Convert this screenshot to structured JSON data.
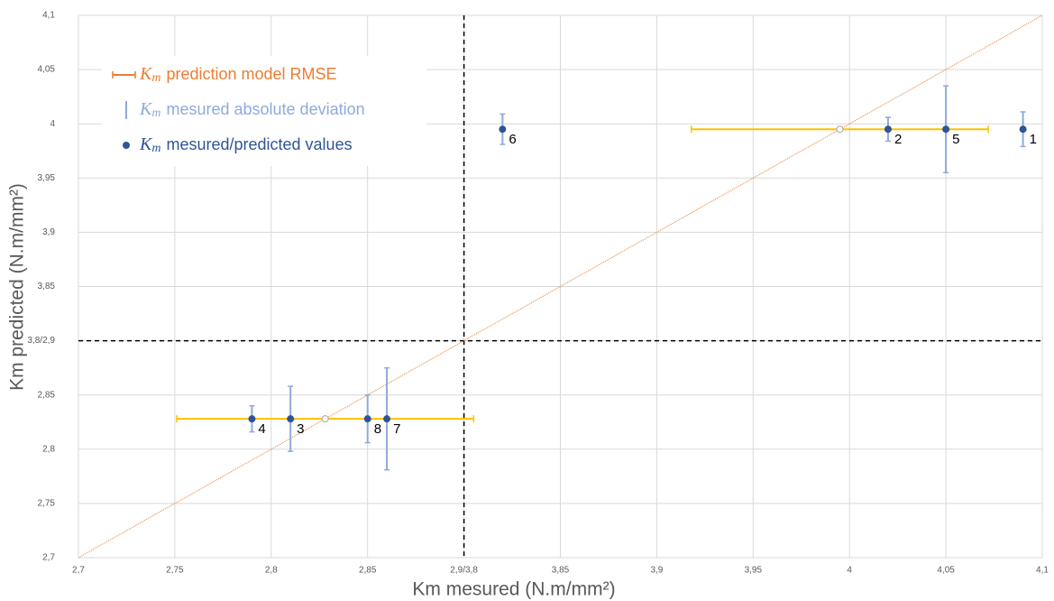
{
  "chart_data": {
    "type": "scatter",
    "xlabel": "Km mesured (N.m/mm²)",
    "ylabel": "Km predicted (N.m/mm²)",
    "xlim": [
      2.7,
      4.1
    ],
    "ylim": [
      2.7,
      4.1
    ],
    "xbreak": [
      2.9,
      3.8
    ],
    "ybreak": [
      2.9,
      3.8
    ],
    "grid": true,
    "identity_line": true,
    "xticks": [
      {
        "value": 2.7,
        "label": "2,7"
      },
      {
        "value": 2.75,
        "label": "2,75"
      },
      {
        "value": 2.8,
        "label": "2,8"
      },
      {
        "value": 2.85,
        "label": "2,85"
      },
      {
        "value": 2.9,
        "label": "2,9/3,8"
      },
      {
        "value": 3.85,
        "label": "3,85"
      },
      {
        "value": 3.9,
        "label": "3,9"
      },
      {
        "value": 3.95,
        "label": "3,95"
      },
      {
        "value": 4,
        "label": "4"
      },
      {
        "value": 4.05,
        "label": "4,05"
      },
      {
        "value": 4.1,
        "label": "4,1"
      }
    ],
    "yticks": [
      {
        "value": 2.7,
        "label": "2,7"
      },
      {
        "value": 2.75,
        "label": "2,75"
      },
      {
        "value": 2.8,
        "label": "2,8"
      },
      {
        "value": 2.85,
        "label": "2,85"
      },
      {
        "value": 2.9,
        "label": "3,8/2,9"
      },
      {
        "value": 3.85,
        "label": "3,85"
      },
      {
        "value": 3.9,
        "label": "3,9"
      },
      {
        "value": 3.95,
        "label": "3,95"
      },
      {
        "value": 4,
        "label": "4"
      },
      {
        "value": 4.05,
        "label": "4,05"
      },
      {
        "value": 4.1,
        "label": "4,1"
      }
    ],
    "legend_symbol": "K",
    "legend_symbol_sub": "m",
    "legend": "upper left",
    "series": [
      {
        "name": "prediction model RMSE",
        "color": "#ed7d31",
        "bar_color": "#ffc000",
        "x": [
          2.828,
          3.995
        ],
        "values": [
          2.828,
          3.995
        ],
        "xerr": [
          0.077,
          0.077
        ]
      },
      {
        "name": "mesured absolute deviation",
        "color": "#8faadc",
        "values": [
          0.016,
          0.011,
          0.03,
          0.012,
          0.04,
          0.014,
          0.047,
          0.022
        ]
      },
      {
        "name": "mesured/predicted values",
        "color": "#2f5597",
        "x": [
          4.09,
          4.02,
          2.81,
          2.79,
          4.05,
          3.82,
          2.86,
          2.85
        ],
        "values": [
          3.995,
          3.995,
          2.828,
          2.828,
          3.995,
          3.995,
          2.828,
          2.828
        ],
        "labels": [
          "1",
          "2",
          "3",
          "4",
          "5",
          "6",
          "7",
          "8"
        ]
      }
    ]
  }
}
